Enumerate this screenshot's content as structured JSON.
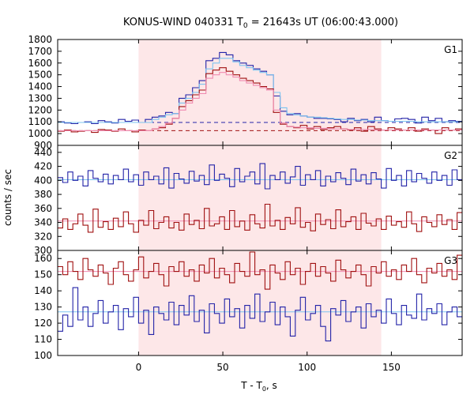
{
  "chart_data": {
    "type": "line",
    "title": "KONUS-WIND 040331 T0 = 21643s UT (06:00:43.000)",
    "title_parts": {
      "pre": "KONUS-WIND 040331 T",
      "sub": "0",
      "post": " = 21643s UT (06:00:43.000)"
    },
    "xlabel": "T - T0, s",
    "xlabel_parts": {
      "pre": "T - T",
      "sub": "0",
      "post": ", s"
    },
    "ylabel": "counts / sec",
    "xlim": [
      -48,
      192
    ],
    "xticks": [
      0,
      50,
      100,
      150
    ],
    "shaded_interval": [
      0,
      144
    ],
    "shade_color": "#fde7e8",
    "colors": {
      "blue": "#2323a8",
      "red": "#a01010",
      "light_blue": "#7cc4f0",
      "pink": "#f08ab0"
    },
    "panels": [
      {
        "name": "G1",
        "ylim": [
          900,
          1800
        ],
        "yticks": [
          900,
          1000,
          1100,
          1200,
          1300,
          1400,
          1500,
          1600,
          1700,
          1800
        ],
        "step": 4,
        "x0": -48,
        "background_levels": [
          {
            "value": 1095,
            "series": "blue",
            "style": "dashed"
          },
          {
            "value": 1025,
            "series": "red",
            "style": "dashed"
          }
        ],
        "series": [
          {
            "color_key": "blue",
            "values": [
              1100,
              1090,
              1085,
              1095,
              1100,
              1085,
              1110,
              1100,
              1090,
              1120,
              1105,
              1115,
              1095,
              1120,
              1140,
              1150,
              1180,
              1170,
              1300,
              1330,
              1390,
              1450,
              1620,
              1640,
              1690,
              1670,
              1620,
              1600,
              1580,
              1550,
              1530,
              1500,
              1320,
              1190,
              1160,
              1170,
              1150,
              1140,
              1130,
              1130,
              1125,
              1120,
              1100,
              1130,
              1110,
              1120,
              1100,
              1140,
              1110,
              1105,
              1125,
              1130,
              1120,
              1090,
              1140,
              1110,
              1130,
              1100,
              1110,
              1105
            ]
          },
          {
            "color_key": "light_blue",
            "values": [
              1095,
              1095,
              1095,
              1095,
              1095,
              1095,
              1095,
              1095,
              1095,
              1095,
              1095,
              1095,
              1095,
              1095,
              1120,
              1140,
              1160,
              1170,
              1260,
              1300,
              1350,
              1420,
              1550,
              1600,
              1640,
              1640,
              1610,
              1580,
              1560,
              1540,
              1520,
              1500,
              1350,
              1220,
              1170,
              1160,
              1150,
              1140,
              1140,
              1135,
              1130,
              1125,
              1120,
              1120,
              1115,
              1115,
              1110,
              1110,
              1110,
              1105,
              1105,
              1105,
              1105,
              1100,
              1100,
              1100,
              1100,
              1100,
              1100,
              1100
            ]
          },
          {
            "color_key": "red",
            "values": [
              1020,
              1030,
              1015,
              1020,
              1025,
              1010,
              1035,
              1030,
              1020,
              1040,
              1025,
              1015,
              1030,
              1025,
              1040,
              1050,
              1080,
              1130,
              1230,
              1280,
              1330,
              1370,
              1510,
              1540,
              1560,
              1530,
              1500,
              1470,
              1450,
              1430,
              1400,
              1380,
              1180,
              1080,
              1060,
              1050,
              1070,
              1040,
              1060,
              1035,
              1050,
              1060,
              1040,
              1030,
              1050,
              1020,
              1060,
              1040,
              1030,
              1050,
              1040,
              1030,
              1050,
              1020,
              1040,
              1030,
              1000,
              1050,
              1030,
              1040
            ]
          },
          {
            "color_key": "pink",
            "values": [
              1025,
              1025,
              1025,
              1025,
              1025,
              1025,
              1025,
              1025,
              1025,
              1025,
              1025,
              1025,
              1025,
              1025,
              1040,
              1060,
              1090,
              1130,
              1200,
              1260,
              1300,
              1340,
              1470,
              1500,
              1520,
              1500,
              1480,
              1450,
              1430,
              1410,
              1390,
              1370,
              1200,
              1090,
              1060,
              1055,
              1050,
              1050,
              1045,
              1045,
              1040,
              1040,
              1040,
              1035,
              1035,
              1035,
              1035,
              1030,
              1030,
              1030,
              1030,
              1030,
              1030,
              1030,
              1030,
              1030,
              1030,
              1030,
              1030,
              1030
            ]
          }
        ]
      },
      {
        "name": "G2",
        "ylim": [
          300,
          450
        ],
        "yticks": [
          300,
          320,
          340,
          360,
          380,
          400,
          420,
          440
        ],
        "step": 3,
        "x0": -48,
        "background_levels": [
          {
            "value": 401,
            "series": "light_blue",
            "style": "solid"
          },
          {
            "value": 342,
            "series": "pink",
            "style": "solid"
          }
        ],
        "series": [
          {
            "color_key": "blue",
            "values": [
              404,
              397,
              412,
              400,
              406,
              392,
              414,
              403,
              398,
              409,
              395,
              407,
              401,
              416,
              398,
              408,
              393,
              412,
              401,
              406,
              395,
              418,
              389,
              410,
              402,
              396,
              413,
              399,
              407,
              394,
              422,
              400,
              409,
              403,
              391,
              417,
              398,
              406,
              412,
              395,
              424,
              388,
              407,
              401,
              412,
              396,
              405,
              420,
              393,
              408,
              401,
              414,
              392,
              406,
              398,
              411,
              403,
              394,
              416,
              399,
              408,
              395,
              411,
              402,
              389,
              417,
              400,
              407,
              392,
              414,
              398,
              410,
              403,
              396,
              412,
              400,
              407,
              393,
              415,
              401
            ]
          },
          {
            "color_key": "red",
            "values": [
              332,
              345,
              330,
              338,
              352,
              336,
              326,
              359,
              333,
              341,
              330,
              346,
              334,
              355,
              338,
              326,
              343,
              336,
              357,
              331,
              340,
              348,
              332,
              340,
              329,
              352,
              337,
              343,
              331,
              360,
              335,
              338,
              348,
              330,
              357,
              334,
              342,
              329,
              351,
              338,
              332,
              366,
              335,
              343,
              330,
              347,
              338,
              361,
              333,
              340,
              328,
              352,
              337,
              344,
              331,
              358,
              334,
              341,
              348,
              330,
              353,
              339,
              335,
              345,
              330,
              349,
              336,
              341,
              333,
              355,
              338,
              327,
              348,
              340,
              334,
              351,
              337,
              344,
              330,
              354
            ]
          }
        ]
      },
      {
        "name": "G3",
        "ylim": [
          100,
          165
        ],
        "yticks": [
          100,
          110,
          120,
          130,
          140,
          150,
          160
        ],
        "step": 3,
        "x0": -48,
        "background_levels": [
          {
            "value": 127,
            "series": "light_blue",
            "style": "solid"
          },
          {
            "value": 152,
            "series": "pink",
            "style": "solid"
          }
        ],
        "series": [
          {
            "color_key": "blue",
            "values": [
              115,
              125,
              118,
              142,
              122,
              130,
              118,
              126,
              134,
              120,
              127,
              131,
              116,
              129,
              124,
              136,
              120,
              128,
              113,
              130,
              126,
              122,
              133,
              119,
              131,
              125,
              137,
              121,
              128,
              114,
              132,
              126,
              120,
              135,
              124,
              129,
              117,
              131,
              123,
              138,
              121,
              127,
              133,
              119,
              130,
              124,
              112,
              128,
              136,
              122,
              126,
              131,
              118,
              109,
              129,
              125,
              134,
              121,
              127,
              130,
              117,
              132,
              124,
              128,
              120,
              135,
              126,
              119,
              131,
              125,
              123,
              138,
              122,
              129,
              126,
              132,
              119,
              127,
              130,
              124
            ]
          },
          {
            "color_key": "red",
            "values": [
              155,
              150,
              158,
              152,
              147,
              160,
              153,
              149,
              156,
              151,
              144,
              154,
              158,
              150,
              146,
              153,
              161,
              148,
              152,
              157,
              150,
              143,
              155,
              152,
              158,
              149,
              153,
              146,
              156,
              151,
              160,
              148,
              154,
              150,
              145,
              157,
              152,
              149,
              164,
              150,
              153,
              141,
              156,
              151,
              147,
              158,
              150,
              154,
              144,
              152,
              157,
              149,
              155,
              151,
              146,
              159,
              153,
              148,
              152,
              156,
              150,
              143,
              155,
              151,
              158,
              149,
              153,
              147,
              156,
              152,
              160,
              150,
              145,
              154,
              151,
              157,
              149,
              153,
              147,
              162
            ]
          }
        ]
      }
    ]
  }
}
